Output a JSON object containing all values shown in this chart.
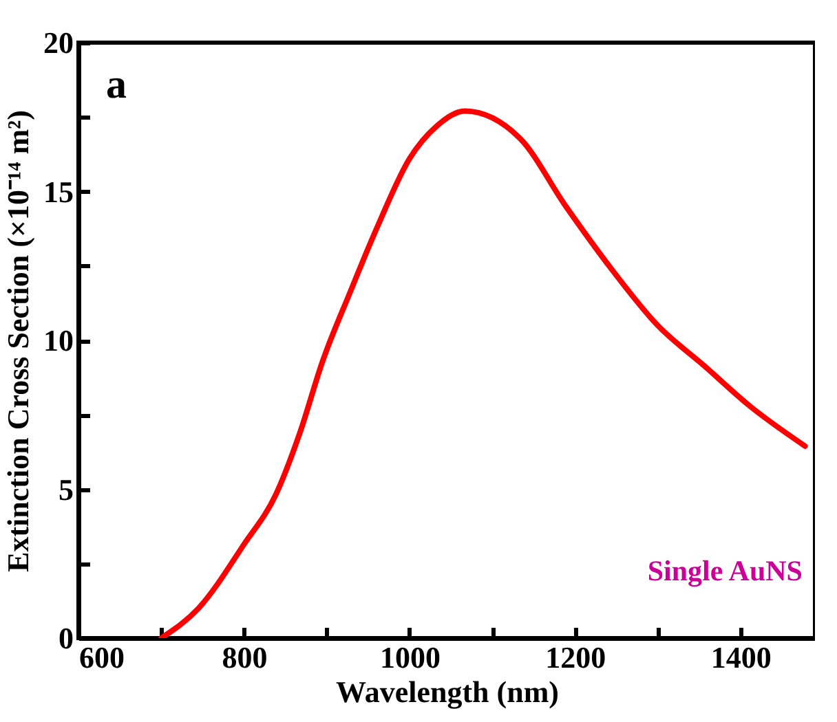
{
  "chart_data": {
    "type": "line",
    "xlabel": "Wavelength (nm)",
    "ylabel": "Extinction Cross Section (×10⁻¹⁴ m²)",
    "annotations": [
      "a",
      "Single AuNS"
    ],
    "xlim": [
      600,
      1490
    ],
    "ylim": [
      0,
      20
    ],
    "xticks": [
      600,
      {
        "value": 700,
        "label": null
      },
      800,
      {
        "value": 900,
        "label": null
      },
      1000,
      {
        "value": 1100,
        "label": null
      },
      1200,
      {
        "value": 1300,
        "label": null
      },
      1400
    ],
    "yticks": [
      0,
      {
        "value": 2.5,
        "label": null
      },
      5,
      {
        "value": 7.5,
        "label": null
      },
      10,
      {
        "value": 12.5,
        "label": null
      },
      15,
      {
        "value": 17.5,
        "label": null
      },
      20
    ],
    "grid": false,
    "legend": false,
    "series": [
      {
        "color": "#ff0000",
        "x": [
          700,
          745,
          800,
          839,
          867,
          895,
          928,
          961,
          1000,
          1033,
          1067,
          1133,
          1189,
          1244,
          1300,
          1356,
          1411,
          1478
        ],
        "values": [
          0,
          1.0,
          3.15,
          4.85,
          6.85,
          9.3,
          11.6,
          13.8,
          16.1,
          17.2,
          17.7,
          16.8,
          14.5,
          12.4,
          10.5,
          9.15,
          7.8,
          6.45
        ]
      }
    ]
  }
}
